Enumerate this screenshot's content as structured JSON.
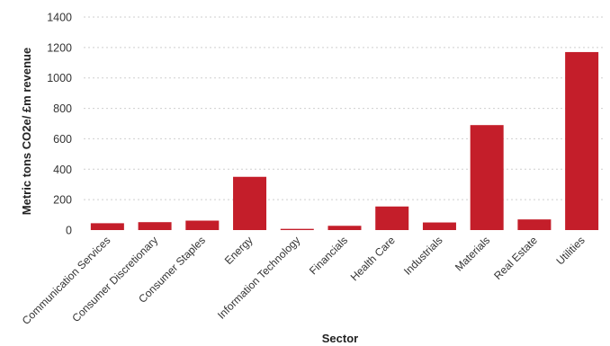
{
  "chart_data": {
    "type": "bar",
    "xlabel": "Sector",
    "ylabel": "Metric tons CO2e/ £m revenue",
    "ylim": [
      0,
      1400
    ],
    "yticks": [
      0,
      200,
      400,
      600,
      800,
      1000,
      1200,
      1400
    ],
    "grid": true,
    "bar_color": "#c41e2a",
    "categories": [
      "Communication Services",
      "Consumer Discretionary",
      "Consumer Staples",
      "Energy",
      "Information Technology",
      "Financials",
      "Health Care",
      "Industrials",
      "Materials",
      "Real Estate",
      "Utilities"
    ],
    "values": [
      45,
      52,
      62,
      350,
      8,
      28,
      155,
      50,
      690,
      70,
      1170
    ]
  }
}
